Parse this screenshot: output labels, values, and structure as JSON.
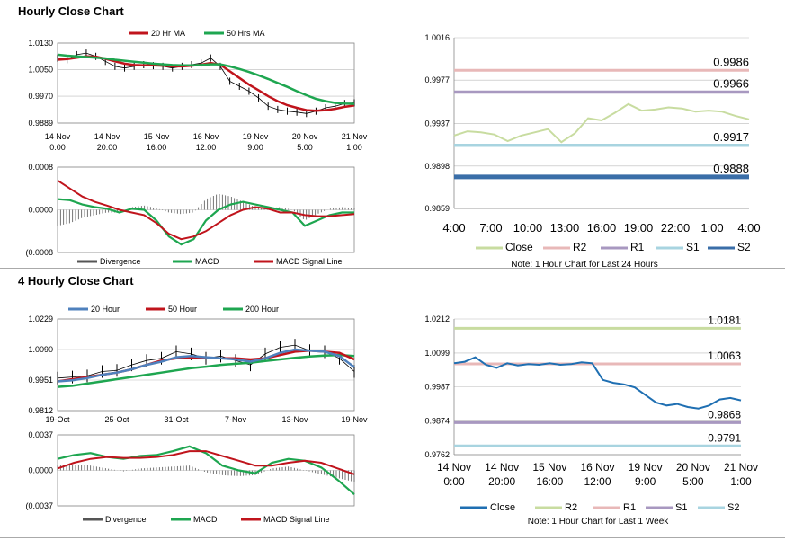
{
  "sections": [
    {
      "title": "Hourly Close Chart"
    },
    {
      "title": "4 Hourly Close Chart"
    }
  ],
  "colors": {
    "ma20": "#c0141c",
    "ma50": "#1ea650",
    "price": "#000000",
    "macd": "#1ea650",
    "signal": "#c0141c",
    "divergence": "#555555",
    "close_light": "#c8dca0",
    "close_dark": "#1f6fb2",
    "r2": "#e8b8b8",
    "r1": "#a898c0",
    "s1": "#a8d4e0",
    "s2": "#3a6ea8",
    "r2_green": "#c8dca0",
    "r1_pink": "#e8b8b8",
    "s1_purple": "#a898c0",
    "s2_cyan": "#a8d4e0",
    "blue20": "#4f81bd",
    "red50": "#c0141c",
    "green200": "#1ea650"
  },
  "chart_data": [
    {
      "id": "hourly-price",
      "type": "line",
      "title": "Hourly Close Chart",
      "legend": [
        "20 Hr MA",
        "50 Hrs MA"
      ],
      "y_ticks": [
        "1.0130",
        "1.0050",
        "0.9970",
        "0.9889"
      ],
      "ylim": [
        0.9889,
        1.013
      ],
      "x_ticks": [
        [
          "14 Nov",
          "0:00"
        ],
        [
          "14 Nov",
          "20:00"
        ],
        [
          "15 Nov",
          "16:00"
        ],
        [
          "16 Nov",
          "12:00"
        ],
        [
          "19 Nov",
          "9:00"
        ],
        [
          "20 Nov",
          "5:00"
        ],
        [
          "21 Nov",
          "1:00"
        ]
      ],
      "series": [
        {
          "name": "Price",
          "values": [
            1.0085,
            1.008,
            1.0095,
            1.01,
            1.009,
            1.0075,
            1.006,
            1.0055,
            1.006,
            1.0065,
            1.0062,
            1.006,
            1.0055,
            1.006,
            1.0065,
            1.007,
            1.0085,
            1.006,
            1.0015,
            1.0,
            0.9985,
            0.9965,
            0.994,
            0.993,
            0.9925,
            0.9922,
            0.9918,
            0.9925,
            0.9935,
            0.994,
            0.9948,
            0.995
          ]
        },
        {
          "name": "20 Hr MA",
          "values": [
            1.008,
            1.0082,
            1.0086,
            1.009,
            1.0089,
            1.0083,
            1.0075,
            1.0068,
            1.0064,
            1.0063,
            1.0063,
            1.0062,
            1.006,
            1.006,
            1.0062,
            1.0065,
            1.007,
            1.0065,
            1.0045,
            1.0025,
            1.0005,
            0.9988,
            0.997,
            0.9955,
            0.9943,
            0.9935,
            0.9928,
            0.9926,
            0.9928,
            0.9932,
            0.9938,
            0.9942
          ]
        },
        {
          "name": "50 Hrs MA",
          "values": [
            1.0095,
            1.0092,
            1.009,
            1.0088,
            1.0086,
            1.0084,
            1.008,
            1.0077,
            1.0074,
            1.0071,
            1.0068,
            1.0066,
            1.0064,
            1.0063,
            1.0063,
            1.0064,
            1.0066,
            1.0066,
            1.006,
            1.0052,
            1.0043,
            1.0033,
            1.0022,
            1.001,
            0.9998,
            0.9985,
            0.9973,
            0.9962,
            0.9955,
            0.995,
            0.9948,
            0.9947
          ]
        }
      ]
    },
    {
      "id": "hourly-macd",
      "type": "line",
      "legend": [
        "Divergence",
        "MACD",
        "MACD Signal Line"
      ],
      "y_ticks": [
        "0.0008",
        "0.0000",
        "(0.0008"
      ],
      "ylim": [
        -0.0008,
        0.0008
      ],
      "series": [
        {
          "name": "MACD",
          "values": [
            0.0002,
            0.00018,
            0.0001,
            5e-05,
            2e-05,
            -5e-05,
            2e-05,
            0.0,
            -0.0002,
            -0.0005,
            -0.00065,
            -0.00055,
            -0.0002,
            0.0,
            0.0001,
            0.00015,
            0.0001,
            5e-05,
            0.0,
            -5e-05,
            -0.0003,
            -0.0002,
            -0.0001,
            -5e-05,
            -5e-05
          ]
        },
        {
          "name": "MACD Signal Line",
          "values": [
            0.00055,
            0.0004,
            0.00025,
            0.00015,
            8e-05,
            0.0,
            -5e-05,
            -0.0001,
            -0.00025,
            -0.00045,
            -0.00055,
            -0.0005,
            -0.0004,
            -0.00025,
            -0.0001,
            0.0,
            5e-05,
            2e-05,
            -5e-05,
            -5e-05,
            -0.0001,
            -0.00012,
            -0.00012,
            -0.0001,
            -8e-05
          ]
        },
        {
          "name": "Divergence",
          "values": [
            -0.0003,
            -0.00025,
            -0.00015,
            -0.0001,
            -5e-05,
            -5e-05,
            5e-05,
            8e-05,
            3e-05,
            -5e-05,
            -8e-05,
            -5e-05,
            0.0002,
            0.0003,
            0.00025,
            0.00015,
            5e-05,
            3e-05,
            5e-05,
            0.0,
            -0.0002,
            -8e-05,
            2e-05,
            5e-05,
            3e-05
          ]
        }
      ]
    },
    {
      "id": "hourly-levels",
      "type": "line",
      "legend": [
        "Close",
        "R2",
        "R1",
        "S1",
        "S2"
      ],
      "note": "Note: 1 Hour Chart for Last 24 Hours",
      "y_ticks": [
        "1.0016",
        "0.9977",
        "0.9937",
        "0.9898",
        "0.9859"
      ],
      "ylim": [
        0.9859,
        1.0016
      ],
      "x_ticks": [
        "4:00",
        "7:00",
        "10:00",
        "13:00",
        "16:00",
        "19:00",
        "22:00",
        "1:00",
        "4:00"
      ],
      "levels": [
        {
          "name": "R2",
          "value": 0.9986,
          "label": "0.9986"
        },
        {
          "name": "R1",
          "value": 0.9966,
          "label": "0.9966"
        },
        {
          "name": "S1",
          "value": 0.9917,
          "label": "0.9917"
        },
        {
          "name": "S2",
          "value": 0.9888,
          "label": "0.9888"
        }
      ],
      "close": [
        0.9926,
        0.993,
        0.9929,
        0.9927,
        0.9921,
        0.9926,
        0.9929,
        0.9932,
        0.992,
        0.9928,
        0.9942,
        0.994,
        0.9947,
        0.9955,
        0.9949,
        0.995,
        0.9952,
        0.9951,
        0.9948,
        0.9949,
        0.9948,
        0.9944,
        0.9941
      ]
    },
    {
      "id": "4hourly-price",
      "type": "line",
      "title": "4 Hourly Close Chart",
      "legend": [
        "20 Hour",
        "50 Hour",
        "200 Hour"
      ],
      "y_ticks": [
        "1.0229",
        "1.0090",
        "0.9951",
        "0.9812"
      ],
      "ylim": [
        0.9812,
        1.0229
      ],
      "x_ticks": [
        "19-Oct",
        "25-Oct",
        "31-Oct",
        "7-Nov",
        "13-Nov",
        "19-Nov"
      ],
      "series": [
        {
          "name": "Price",
          "values": [
            0.996,
            0.9965,
            0.997,
            0.999,
            0.9995,
            1.002,
            1.004,
            1.005,
            1.008,
            1.007,
            1.005,
            1.006,
            1.004,
            1.002,
            1.007,
            1.01,
            1.011,
            1.0085,
            1.008,
            1.005,
            0.999
          ]
        },
        {
          "name": "20 Hour",
          "values": [
            0.9945,
            0.995,
            0.996,
            0.9975,
            0.9985,
            1.0,
            1.002,
            1.0035,
            1.0055,
            1.006,
            1.0055,
            1.005,
            1.0045,
            1.0035,
            1.005,
            1.0075,
            1.009,
            1.0085,
            1.008,
            1.006,
            1.001
          ]
        },
        {
          "name": "50 Hour",
          "values": [
            0.9945,
            0.9955,
            0.9965,
            0.9975,
            0.9985,
            1.0,
            1.002,
            1.004,
            1.005,
            1.0055,
            1.005,
            1.005,
            1.005,
            1.0045,
            1.005,
            1.0065,
            1.008,
            1.0085,
            1.008,
            1.0075,
            1.0045
          ]
        },
        {
          "name": "200 Hour",
          "values": [
            0.992,
            0.9925,
            0.9935,
            0.9945,
            0.9955,
            0.9965,
            0.9975,
            0.9985,
            0.9995,
            1.0005,
            1.0012,
            1.002,
            1.0025,
            1.003,
            1.0038,
            1.0045,
            1.0052,
            1.0058,
            1.0062,
            1.0065,
            1.006
          ]
        }
      ]
    },
    {
      "id": "4hourly-macd",
      "type": "line",
      "legend": [
        "Divergence",
        "MACD",
        "MACD Signal Line"
      ],
      "y_ticks": [
        "0.0037",
        "0.0000",
        "(0.0037"
      ],
      "ylim": [
        -0.0037,
        0.0037
      ],
      "series": [
        {
          "name": "MACD",
          "values": [
            0.0012,
            0.0016,
            0.0018,
            0.0014,
            0.0012,
            0.0015,
            0.0016,
            0.002,
            0.0025,
            0.0018,
            0.0005,
            0.0,
            -0.0003,
            0.0008,
            0.0012,
            0.001,
            0.0003,
            -0.001,
            -0.0025
          ]
        },
        {
          "name": "MACD Signal Line",
          "values": [
            0.0002,
            0.0008,
            0.0012,
            0.0014,
            0.0013,
            0.0013,
            0.0014,
            0.0016,
            0.002,
            0.002,
            0.0015,
            0.001,
            0.0005,
            0.0005,
            0.0008,
            0.001,
            0.0008,
            0.0002,
            -0.0004
          ]
        },
        {
          "name": "Divergence",
          "values": [
            0.0005,
            0.0006,
            0.0005,
            0.0002,
            -0.0001,
            0.0002,
            0.0003,
            0.0004,
            0.0005,
            -0.0002,
            -0.0005,
            -0.0006,
            -0.0005,
            0.0002,
            0.0004,
            0.0,
            -0.0004,
            -0.0008,
            -0.0012
          ]
        }
      ]
    },
    {
      "id": "4hourly-levels",
      "type": "line",
      "legend": [
        "Close",
        "R2",
        "R1",
        "S1",
        "S2"
      ],
      "note": "Note: 1 Hour Chart for Last 1 Week",
      "y_ticks": [
        "1.0212",
        "1.0099",
        "0.9987",
        "0.9874",
        "0.9762"
      ],
      "ylim": [
        0.9762,
        1.0212
      ],
      "x_ticks": [
        [
          "14 Nov",
          "0:00"
        ],
        [
          "14 Nov",
          "20:00"
        ],
        [
          "15 Nov",
          "16:00"
        ],
        [
          "16 Nov",
          "12:00"
        ],
        [
          "19 Nov",
          "9:00"
        ],
        [
          "20 Nov",
          "5:00"
        ],
        [
          "21 Nov",
          "1:00"
        ]
      ],
      "levels": [
        {
          "name": "R2",
          "value": 1.0181,
          "label": "1.0181"
        },
        {
          "name": "R1",
          "value": 1.0063,
          "label": "1.0063"
        },
        {
          "name": "S1",
          "value": 0.9868,
          "label": "0.9868"
        },
        {
          "name": "S2",
          "value": 0.9791,
          "label": "0.9791"
        }
      ],
      "close": [
        1.0065,
        1.007,
        1.0085,
        1.006,
        1.005,
        1.0065,
        1.0058,
        1.0062,
        1.006,
        1.0065,
        1.006,
        1.0062,
        1.0068,
        1.0065,
        1.001,
        1.0,
        0.9995,
        0.9985,
        0.996,
        0.9935,
        0.9925,
        0.993,
        0.992,
        0.9915,
        0.9925,
        0.9945,
        0.995,
        0.9942
      ]
    }
  ]
}
